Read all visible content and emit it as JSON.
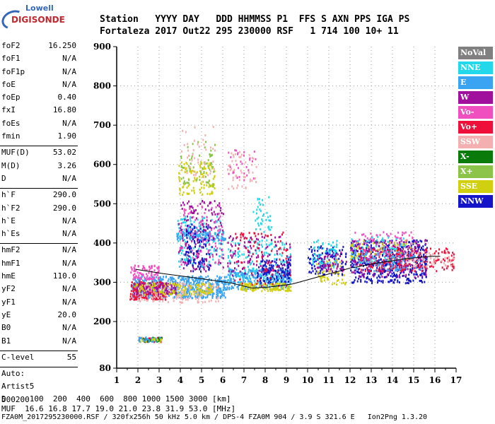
{
  "logo": {
    "line1": "Lowell",
    "line2": "DIGISONDE"
  },
  "header": {
    "row1": "Station   YYYY DAY   DDD HHMMSS P1  FFS S AXN PPS IGA PS",
    "row2": "Fortaleza 2017 Out22 295 230000 RSF   1 714 100 10+ 11"
  },
  "params": [
    {
      "name": "foF2",
      "value": "16.250"
    },
    {
      "name": "foF1",
      "value": "N/A"
    },
    {
      "name": "foF1p",
      "value": "N/A"
    },
    {
      "name": "foE",
      "value": "N/A"
    },
    {
      "name": "foEp",
      "value": "0.40"
    },
    {
      "name": "fxI",
      "value": "16.80"
    },
    {
      "name": "foEs",
      "value": "N/A"
    },
    {
      "name": "fmin",
      "value": "1.90"
    },
    {
      "sep": true
    },
    {
      "name": "MUF(D)",
      "value": "53.02"
    },
    {
      "name": "M(D)",
      "value": "3.26"
    },
    {
      "name": "D",
      "value": "N/A"
    },
    {
      "sep": true
    },
    {
      "name": "h`F",
      "value": "290.0"
    },
    {
      "name": "h`F2",
      "value": "290.0"
    },
    {
      "name": "h`E",
      "value": "N/A"
    },
    {
      "name": "h`Es",
      "value": "N/A"
    },
    {
      "sep": true
    },
    {
      "name": "hmF2",
      "value": "N/A"
    },
    {
      "name": "hmF1",
      "value": "N/A"
    },
    {
      "name": "hmE",
      "value": "110.0"
    },
    {
      "name": "yF2",
      "value": "N/A"
    },
    {
      "name": "yF1",
      "value": "N/A"
    },
    {
      "name": "yE",
      "value": "20.0"
    },
    {
      "name": "B0",
      "value": "N/A"
    },
    {
      "name": "B1",
      "value": "N/A"
    },
    {
      "sep": true
    },
    {
      "name": "C-level",
      "value": "55"
    },
    {
      "sep": true
    },
    {
      "name": "Auto:",
      "value": ""
    },
    {
      "name": "Artist5",
      "value": ""
    },
    {
      "name": "500200",
      "value": ""
    }
  ],
  "footer": {
    "d_row": "D     100  200  400  600  800 1000 1500 3000 [km]",
    "muf_row": "MUF  16.6 16.8 17.7 19.0 21.0 23.8 31.9 53.0 [MHz]",
    "file_row": "FZA0M_2017295230000.RSF / 320fx256h 50 kHz 5.0 km / DPS-4 FZA0M 904 / 3.9 S 321.6 E   Ion2Png 1.3.20"
  },
  "legend": [
    {
      "label": "NoVal",
      "color": "#808080"
    },
    {
      "label": "NNE",
      "color": "#22d8ea"
    },
    {
      "label": "E",
      "color": "#3ba4f2"
    },
    {
      "label": "W",
      "color": "#a0109c"
    },
    {
      "label": "Vo-",
      "color": "#f04fc0"
    },
    {
      "label": "Vo+",
      "color": "#ee0f3a"
    },
    {
      "label": "SSW",
      "color": "#f4b0b0"
    },
    {
      "label": "X-",
      "color": "#0a7a0a"
    },
    {
      "label": "X+",
      "color": "#8cc44a"
    },
    {
      "label": "SSE",
      "color": "#d0d010"
    },
    {
      "label": "NNW",
      "color": "#1414c8"
    }
  ],
  "chart_data": {
    "type": "scatter",
    "xlabel": "",
    "ylabel": "",
    "xlim": [
      1,
      17
    ],
    "ylim": [
      80,
      900
    ],
    "xticks": [
      1,
      2,
      3,
      4,
      5,
      6,
      7,
      8,
      9,
      10,
      11,
      12,
      13,
      14,
      15,
      16,
      17
    ],
    "yticks": [
      80,
      200,
      300,
      400,
      500,
      600,
      700,
      800,
      900
    ],
    "grid": true,
    "profile_line": {
      "x": [
        1.9,
        3.2,
        4.6,
        6.4,
        7.4,
        8.2,
        9.3,
        12.0,
        13.2,
        14.6,
        15.8,
        16.25
      ],
      "y": [
        333,
        322,
        312,
        298,
        285,
        288,
        296,
        336,
        348,
        360,
        366,
        366
      ]
    },
    "clusters": [
      {
        "color": "#3ba4f2",
        "xr": [
          1.7,
          6.2
        ],
        "yr": [
          262,
          318
        ],
        "n": 600
      },
      {
        "color": "#ee0f3a",
        "xr": [
          1.6,
          3.3
        ],
        "yr": [
          258,
          305
        ],
        "n": 180
      },
      {
        "color": "#f04fc0",
        "xr": [
          1.6,
          3.0
        ],
        "yr": [
          310,
          345
        ],
        "n": 90
      },
      {
        "color": "#f4b0b0",
        "xr": [
          2.0,
          5.8
        ],
        "yr": [
          250,
          300
        ],
        "n": 180
      },
      {
        "color": "#a0109c",
        "xr": [
          1.8,
          3.8
        ],
        "yr": [
          272,
          300
        ],
        "n": 120
      },
      {
        "color": "#d0d010",
        "xr": [
          1.8,
          5.5
        ],
        "yr": [
          268,
          300
        ],
        "n": 120
      },
      {
        "color": "#3ba4f2",
        "xr": [
          3.8,
          6.1
        ],
        "yr": [
          410,
          432
        ],
        "n": 140
      },
      {
        "color": "#22d8ea",
        "xr": [
          3.8,
          6.0
        ],
        "yr": [
          340,
          470
        ],
        "n": 160
      },
      {
        "color": "#a0109c",
        "xr": [
          3.9,
          6.0
        ],
        "yr": [
          330,
          510
        ],
        "n": 160
      },
      {
        "color": "#f04fc0",
        "xr": [
          3.9,
          6.0
        ],
        "yr": [
          340,
          500
        ],
        "n": 100
      },
      {
        "color": "#1414c8",
        "xr": [
          4.2,
          5.4
        ],
        "yr": [
          330,
          450
        ],
        "n": 90
      },
      {
        "color": "#d0d010",
        "xr": [
          3.9,
          5.6
        ],
        "yr": [
          525,
          610
        ],
        "n": 110
      },
      {
        "color": "#8cc44a",
        "xr": [
          4.0,
          5.6
        ],
        "yr": [
          540,
          660
        ],
        "n": 60
      },
      {
        "color": "#f4b0b0",
        "xr": [
          4.0,
          5.6
        ],
        "yr": [
          570,
          700
        ],
        "n": 40
      },
      {
        "color": "#f4b0b0",
        "xr": [
          6.2,
          7.6
        ],
        "yr": [
          540,
          640
        ],
        "n": 50
      },
      {
        "color": "#f04fc0",
        "xr": [
          6.2,
          7.6
        ],
        "yr": [
          560,
          640
        ],
        "n": 30
      },
      {
        "color": "#3ba4f2",
        "xr": [
          6.2,
          9.2
        ],
        "yr": [
          285,
          335
        ],
        "n": 300
      },
      {
        "color": "#22d8ea",
        "xr": [
          6.2,
          9.2
        ],
        "yr": [
          300,
          410
        ],
        "n": 160
      },
      {
        "color": "#a0109c",
        "xr": [
          6.2,
          9.2
        ],
        "yr": [
          320,
          420
        ],
        "n": 120
      },
      {
        "color": "#1414c8",
        "xr": [
          7.6,
          9.2
        ],
        "yr": [
          300,
          360
        ],
        "n": 120
      },
      {
        "color": "#d0d010",
        "xr": [
          6.8,
          9.2
        ],
        "yr": [
          280,
          300
        ],
        "n": 120
      },
      {
        "color": "#ee0f3a",
        "xr": [
          6.5,
          9.2
        ],
        "yr": [
          290,
          430
        ],
        "n": 80
      },
      {
        "color": "#22d8ea",
        "xr": [
          7.4,
          8.3
        ],
        "yr": [
          430,
          520
        ],
        "n": 40
      },
      {
        "color": "#1414c8",
        "xr": [
          10.0,
          11.8
        ],
        "yr": [
          320,
          395
        ],
        "n": 120
      },
      {
        "color": "#22d8ea",
        "xr": [
          10.2,
          11.4
        ],
        "yr": [
          340,
          410
        ],
        "n": 70
      },
      {
        "color": "#d0d010",
        "xr": [
          10.4,
          11.8
        ],
        "yr": [
          295,
          360
        ],
        "n": 50
      },
      {
        "color": "#a0109c",
        "xr": [
          10.4,
          11.8
        ],
        "yr": [
          330,
          380
        ],
        "n": 50
      },
      {
        "color": "#1414c8",
        "xr": [
          12.0,
          15.6
        ],
        "yr": [
          300,
          410
        ],
        "n": 500
      },
      {
        "color": "#a0109c",
        "xr": [
          12.0,
          15.6
        ],
        "yr": [
          315,
          410
        ],
        "n": 200
      },
      {
        "color": "#ee0f3a",
        "xr": [
          12.4,
          16.9
        ],
        "yr": [
          330,
          390
        ],
        "n": 220
      },
      {
        "color": "#f04fc0",
        "xr": [
          12.2,
          15.0
        ],
        "yr": [
          360,
          430
        ],
        "n": 100
      },
      {
        "color": "#22d8ea",
        "xr": [
          12.0,
          14.6
        ],
        "yr": [
          350,
          420
        ],
        "n": 60
      },
      {
        "color": "#d0d010",
        "xr": [
          12.0,
          15.0
        ],
        "yr": [
          360,
          410
        ],
        "n": 50
      },
      {
        "color": "#3ba4f2",
        "xr": [
          12.0,
          15.5
        ],
        "yr": [
          330,
          380
        ],
        "n": 80
      },
      {
        "color": "#f4b0b0",
        "xr": [
          14.6,
          16.9
        ],
        "yr": [
          340,
          380
        ],
        "n": 50
      },
      {
        "color": "#ee0f3a",
        "xr": [
          2.0,
          3.1
        ],
        "yr": [
          150,
          162
        ],
        "n": 30
      },
      {
        "color": "#0a7a0a",
        "xr": [
          2.0,
          3.1
        ],
        "yr": [
          150,
          162
        ],
        "n": 25
      },
      {
        "color": "#d0d010",
        "xr": [
          2.0,
          3.1
        ],
        "yr": [
          150,
          162
        ],
        "n": 20
      },
      {
        "color": "#3ba4f2",
        "xr": [
          2.0,
          3.1
        ],
        "yr": [
          150,
          162
        ],
        "n": 20
      }
    ]
  }
}
